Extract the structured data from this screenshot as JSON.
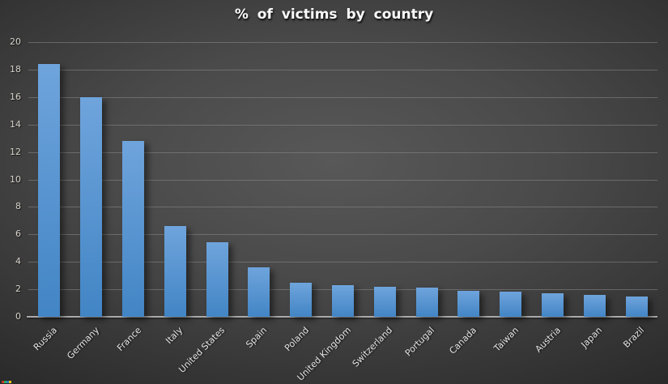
{
  "chart_data": {
    "type": "bar",
    "title": "% of victims by country",
    "categories": [
      "Russia",
      "Germany",
      "France",
      "Italy",
      "United States",
      "Spain",
      "Poland",
      "United Kingdom",
      "Switzerland",
      "Portugal",
      "Canada",
      "Taiwan",
      "Austria",
      "Japan",
      "Brazil"
    ],
    "values": [
      18.4,
      16.0,
      12.8,
      6.6,
      5.4,
      3.6,
      2.5,
      2.3,
      2.2,
      2.1,
      1.9,
      1.8,
      1.7,
      1.6,
      1.5
    ],
    "xlabel": "",
    "ylabel": "",
    "ylim": [
      0,
      20
    ],
    "yticks": [
      0,
      2,
      4,
      6,
      8,
      10,
      12,
      14,
      16,
      18,
      20
    ],
    "grid": true,
    "legend": false,
    "x_tick_rotation_deg": 45
  },
  "colors": {
    "title_text": "#FAFAFA",
    "bar_gradient_top": "#6FA4DC",
    "bar_gradient_bottom": "#4285C5",
    "gridline": "#8A8A8A",
    "axis_line": "#ABABAB",
    "y_tick_text": "#D8D4CC",
    "x_tick_text": "#E4E4E4"
  },
  "artifact": {
    "colors": [
      "#C0392B",
      "#27AE60",
      "#2980B9",
      "#F1C40F"
    ]
  }
}
